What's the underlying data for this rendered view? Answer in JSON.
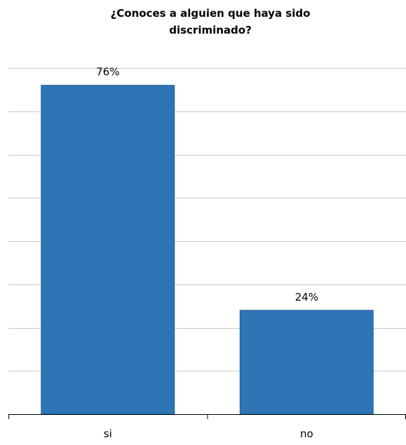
{
  "chart_data": {
    "type": "bar",
    "title_lines": [
      "¿Conoces a alguien que haya sido",
      "discriminado?"
    ],
    "categories": [
      "si",
      "no"
    ],
    "values": [
      76,
      24
    ],
    "value_labels": [
      "76%",
      "24%"
    ],
    "ylim": [
      0,
      80
    ],
    "grid": true,
    "gridline_count": 8,
    "bar_color": "#2E75B5",
    "bar_border_color": "#1F5A90",
    "grid_color": "#C8C8C8",
    "axis_color": "#000000"
  }
}
